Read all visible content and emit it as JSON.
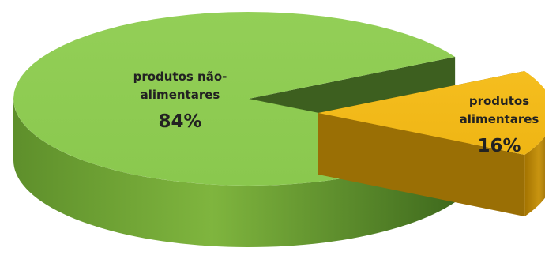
{
  "chart_data": {
    "type": "pie",
    "style": "3d-exploded",
    "slices": [
      {
        "label_lines": [
          "produtos não-",
          "alimentares"
        ],
        "value": 84,
        "value_label": "84%",
        "color": "#92d050"
      },
      {
        "label_lines": [
          "produtos",
          "alimentares"
        ],
        "value": 16,
        "value_label": "16%",
        "color": "#ffc000"
      }
    ]
  }
}
